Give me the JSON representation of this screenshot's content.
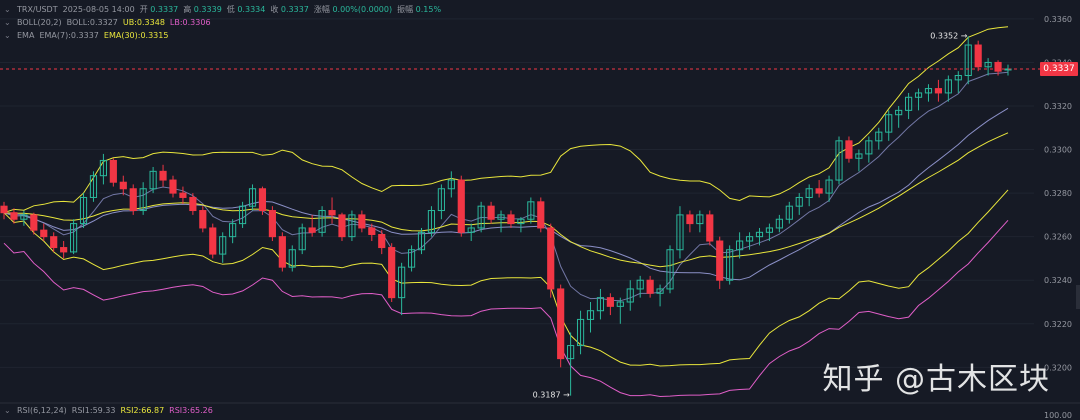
{
  "header": {
    "pair": "TRX/USDT",
    "datetime": "2025-08-05 14:00",
    "open_label": "开",
    "open": "0.3337",
    "high_label": "高",
    "high": "0.3339",
    "low_label": "低",
    "low": "0.3334",
    "close_label": "收",
    "close": "0.3337",
    "change_label": "涨幅",
    "change": "0.00%(0.0000)",
    "amp_label": "振幅",
    "amp": "0.15%"
  },
  "boll": {
    "name": "BOLL(20,2)",
    "mid": "BOLL:0.3327",
    "ub": "UB:0.3348",
    "lb": "LB:0.3306"
  },
  "ema": {
    "name": "EMA",
    "ema7": "EMA(7):0.3337",
    "ema30": "EMA(30):0.3315"
  },
  "rsi": {
    "name": "RSI(6,12,24)",
    "rsi1": "RSI1:59.33",
    "rsi2": "RSI2:66.87",
    "rsi3": "RSI3:65.26"
  },
  "watermark": "知乎 @古木区块",
  "current_price": "0.3337",
  "colors": {
    "up": "#2ab89c",
    "down": "#f23645",
    "boll_band": "#e9e63c",
    "boll_mid": "#8a8fc6",
    "ema7": "#8a8fc6",
    "ema30": "#e9e63c",
    "lower": "#e05ec8"
  },
  "chart_data": {
    "type": "candlestick",
    "y_ticks": [
      "0.3360",
      "0.3340",
      "0.3320",
      "0.3300",
      "0.3280",
      "0.3260",
      "0.3240",
      "0.3220",
      "0.3200"
    ],
    "rsi_ticks": [
      "100.00"
    ],
    "ylim": [
      0.3185,
      0.3365
    ],
    "annotations": [
      {
        "text": "0.3352 →",
        "value": 0.3352
      },
      {
        "text": "0.3187 →",
        "value": 0.3187
      }
    ],
    "candles": [
      [
        0.3274,
        0.3276,
        0.3268,
        0.3271
      ],
      [
        0.3271,
        0.3273,
        0.3266,
        0.3268
      ],
      [
        0.3268,
        0.3272,
        0.3265,
        0.327
      ],
      [
        0.327,
        0.3271,
        0.3261,
        0.3263
      ],
      [
        0.3263,
        0.3266,
        0.3258,
        0.326
      ],
      [
        0.326,
        0.3262,
        0.3253,
        0.3255
      ],
      [
        0.3255,
        0.3258,
        0.325,
        0.3253
      ],
      [
        0.3253,
        0.3268,
        0.3252,
        0.3266
      ],
      [
        0.3266,
        0.328,
        0.3264,
        0.3278
      ],
      [
        0.3278,
        0.329,
        0.3276,
        0.3288
      ],
      [
        0.3288,
        0.3298,
        0.3284,
        0.3295
      ],
      [
        0.3295,
        0.3296,
        0.3283,
        0.3285
      ],
      [
        0.3285,
        0.3288,
        0.3279,
        0.3282
      ],
      [
        0.3282,
        0.3284,
        0.327,
        0.3272
      ],
      [
        0.3272,
        0.3285,
        0.327,
        0.3282
      ],
      [
        0.3282,
        0.3292,
        0.328,
        0.329
      ],
      [
        0.329,
        0.3293,
        0.3283,
        0.3286
      ],
      [
        0.3286,
        0.3288,
        0.3278,
        0.328
      ],
      [
        0.328,
        0.3283,
        0.3275,
        0.3278
      ],
      [
        0.3278,
        0.328,
        0.327,
        0.3272
      ],
      [
        0.3272,
        0.3274,
        0.3262,
        0.3264
      ],
      [
        0.3264,
        0.3266,
        0.325,
        0.3252
      ],
      [
        0.3252,
        0.3262,
        0.3248,
        0.326
      ],
      [
        0.326,
        0.3268,
        0.3257,
        0.3266
      ],
      [
        0.3266,
        0.3276,
        0.3264,
        0.3274
      ],
      [
        0.3274,
        0.3284,
        0.3272,
        0.3282
      ],
      [
        0.3282,
        0.3283,
        0.327,
        0.3272
      ],
      [
        0.3272,
        0.3274,
        0.3258,
        0.326
      ],
      [
        0.326,
        0.3262,
        0.3244,
        0.3246
      ],
      [
        0.3246,
        0.3256,
        0.3244,
        0.3254
      ],
      [
        0.3254,
        0.3266,
        0.3252,
        0.3264
      ],
      [
        0.3264,
        0.327,
        0.326,
        0.3262
      ],
      [
        0.3262,
        0.3274,
        0.326,
        0.3272
      ],
      [
        0.3272,
        0.3278,
        0.3266,
        0.327
      ],
      [
        0.327,
        0.3271,
        0.3258,
        0.326
      ],
      [
        0.326,
        0.3272,
        0.3258,
        0.327
      ],
      [
        0.327,
        0.3272,
        0.3262,
        0.3264
      ],
      [
        0.3264,
        0.3266,
        0.3258,
        0.3261
      ],
      [
        0.3261,
        0.3263,
        0.3252,
        0.3255
      ],
      [
        0.3255,
        0.3257,
        0.323,
        0.3232
      ],
      [
        0.3232,
        0.3248,
        0.3224,
        0.3246
      ],
      [
        0.3246,
        0.3256,
        0.3244,
        0.3254
      ],
      [
        0.3254,
        0.3264,
        0.3252,
        0.3262
      ],
      [
        0.3262,
        0.3274,
        0.326,
        0.3272
      ],
      [
        0.3272,
        0.3284,
        0.3268,
        0.3282
      ],
      [
        0.3282,
        0.329,
        0.3278,
        0.3286
      ],
      [
        0.3286,
        0.3288,
        0.326,
        0.3262
      ],
      [
        0.3262,
        0.3266,
        0.3258,
        0.3264
      ],
      [
        0.3264,
        0.3276,
        0.3262,
        0.3274
      ],
      [
        0.3274,
        0.3276,
        0.3266,
        0.3268
      ],
      [
        0.3268,
        0.3272,
        0.3262,
        0.327
      ],
      [
        0.327,
        0.3272,
        0.3264,
        0.3266
      ],
      [
        0.3266,
        0.3269,
        0.3262,
        0.3268
      ],
      [
        0.3268,
        0.3278,
        0.3266,
        0.3276
      ],
      [
        0.3276,
        0.3278,
        0.3262,
        0.3264
      ],
      [
        0.3264,
        0.3266,
        0.3232,
        0.3236
      ],
      [
        0.3236,
        0.3238,
        0.32,
        0.3204
      ],
      [
        0.3204,
        0.3216,
        0.3187,
        0.321
      ],
      [
        0.321,
        0.3226,
        0.3206,
        0.3222
      ],
      [
        0.3222,
        0.323,
        0.3216,
        0.3226
      ],
      [
        0.3226,
        0.3236,
        0.3222,
        0.3232
      ],
      [
        0.3232,
        0.3234,
        0.3224,
        0.3228
      ],
      [
        0.3228,
        0.3232,
        0.322,
        0.323
      ],
      [
        0.323,
        0.324,
        0.3226,
        0.3236
      ],
      [
        0.3236,
        0.3242,
        0.3232,
        0.324
      ],
      [
        0.324,
        0.3242,
        0.3232,
        0.3234
      ],
      [
        0.3234,
        0.3238,
        0.3228,
        0.3236
      ],
      [
        0.3236,
        0.3256,
        0.3234,
        0.3254
      ],
      [
        0.3254,
        0.3274,
        0.325,
        0.327
      ],
      [
        0.327,
        0.3272,
        0.3262,
        0.3266
      ],
      [
        0.3266,
        0.3272,
        0.3262,
        0.327
      ],
      [
        0.327,
        0.3272,
        0.3256,
        0.3258
      ],
      [
        0.3258,
        0.326,
        0.3236,
        0.324
      ],
      [
        0.324,
        0.3256,
        0.3238,
        0.3254
      ],
      [
        0.3254,
        0.3262,
        0.325,
        0.3258
      ],
      [
        0.3258,
        0.3262,
        0.3254,
        0.326
      ],
      [
        0.326,
        0.3264,
        0.3256,
        0.3262
      ],
      [
        0.3262,
        0.3266,
        0.3258,
        0.3264
      ],
      [
        0.3264,
        0.327,
        0.3262,
        0.3268
      ],
      [
        0.3268,
        0.3276,
        0.3266,
        0.3274
      ],
      [
        0.3274,
        0.328,
        0.327,
        0.3278
      ],
      [
        0.3278,
        0.3284,
        0.3274,
        0.3282
      ],
      [
        0.3282,
        0.3286,
        0.3278,
        0.328
      ],
      [
        0.328,
        0.3288,
        0.3276,
        0.3286
      ],
      [
        0.3286,
        0.3306,
        0.3284,
        0.3304
      ],
      [
        0.3304,
        0.3306,
        0.3294,
        0.3296
      ],
      [
        0.3296,
        0.33,
        0.329,
        0.3298
      ],
      [
        0.3298,
        0.3306,
        0.3294,
        0.3304
      ],
      [
        0.3304,
        0.331,
        0.33,
        0.3308
      ],
      [
        0.3308,
        0.3318,
        0.3304,
        0.3316
      ],
      [
        0.3316,
        0.332,
        0.331,
        0.3318
      ],
      [
        0.3318,
        0.3326,
        0.3314,
        0.3324
      ],
      [
        0.3324,
        0.3328,
        0.3318,
        0.3326
      ],
      [
        0.3326,
        0.333,
        0.3322,
        0.3328
      ],
      [
        0.3328,
        0.3332,
        0.3322,
        0.3326
      ],
      [
        0.3326,
        0.3334,
        0.3322,
        0.3332
      ],
      [
        0.3332,
        0.3336,
        0.3326,
        0.3334
      ],
      [
        0.3334,
        0.3352,
        0.333,
        0.3348
      ],
      [
        0.3348,
        0.335,
        0.3336,
        0.3338
      ],
      [
        0.3338,
        0.3342,
        0.3334,
        0.334
      ],
      [
        0.334,
        0.3341,
        0.3334,
        0.3336
      ],
      [
        0.3337,
        0.3339,
        0.3334,
        0.3337
      ]
    ]
  }
}
